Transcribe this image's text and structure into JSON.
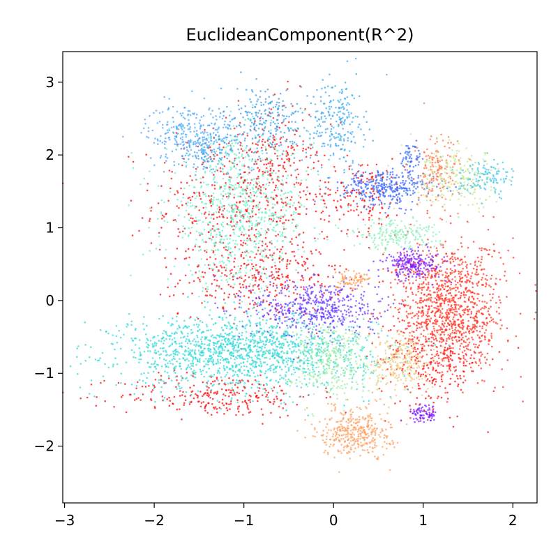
{
  "chart_data": {
    "type": "scatter",
    "title": "EuclideanComponent(R^2)",
    "xlabel": "",
    "ylabel": "",
    "xlim": [
      -3.02,
      2.27
    ],
    "ylim": [
      -2.78,
      3.42
    ],
    "xticks": [
      -3,
      -2,
      -1,
      0,
      1,
      2
    ],
    "yticks": [
      -2,
      -1,
      0,
      1,
      2,
      3
    ],
    "xtick_labels": [
      "−3",
      "−2",
      "−1",
      "0",
      "1",
      "2"
    ],
    "ytick_labels": [
      "−2",
      "−1",
      "0",
      "1",
      "2",
      "3"
    ],
    "grid": false,
    "legend": "none",
    "point_alpha": 0.7,
    "clusters": [
      {
        "color": "#ff0000",
        "center": [
          -1.0,
          1.35
        ],
        "spread": [
          0.5,
          0.55
        ],
        "n": 520
      },
      {
        "color": "#ff0000",
        "center": [
          -0.8,
          0.3
        ],
        "spread": [
          0.45,
          0.25
        ],
        "n": 300
      },
      {
        "color": "#ff0000",
        "center": [
          -1.3,
          -1.3
        ],
        "spread": [
          0.55,
          0.15
        ],
        "n": 260
      },
      {
        "color": "#ff0000",
        "center": [
          0.3,
          1.45
        ],
        "spread": [
          0.25,
          0.25
        ],
        "n": 150
      },
      {
        "color": "#ff0000",
        "center": [
          1.1,
          -0.8
        ],
        "spread": [
          0.3,
          0.35
        ],
        "n": 260
      },
      {
        "color": "#ff0000",
        "center": [
          -0.6,
          1.95
        ],
        "spread": [
          0.15,
          0.4
        ],
        "n": 100
      },
      {
        "color": "#4da6ff",
        "center": [
          -1.6,
          2.3
        ],
        "spread": [
          0.25,
          0.2
        ],
        "n": 280
      },
      {
        "color": "#3a9ee8",
        "center": [
          -0.75,
          2.45
        ],
        "spread": [
          0.25,
          0.25
        ],
        "n": 260
      },
      {
        "color": "#3aa8f0",
        "center": [
          0.05,
          2.45
        ],
        "spread": [
          0.15,
          0.3
        ],
        "n": 220
      },
      {
        "color": "#3a9ee8",
        "center": [
          -1.4,
          2.0
        ],
        "spread": [
          0.2,
          0.15
        ],
        "n": 100
      },
      {
        "color": "#66f0c8",
        "center": [
          -1.05,
          1.2
        ],
        "spread": [
          0.4,
          0.5
        ],
        "n": 750
      },
      {
        "color": "#30d9d9",
        "center": [
          -1.0,
          -0.7
        ],
        "spread": [
          0.7,
          0.25
        ],
        "n": 1500
      },
      {
        "color": "#6633ff",
        "center": [
          -0.2,
          -0.1
        ],
        "spread": [
          0.35,
          0.2
        ],
        "n": 500
      },
      {
        "color": "#9af0a0",
        "center": [
          -0.05,
          -0.8
        ],
        "spread": [
          0.25,
          0.25
        ],
        "n": 350
      },
      {
        "color": "#ff3320",
        "center": [
          1.3,
          -0.1
        ],
        "spread": [
          0.3,
          0.45
        ],
        "n": 1100
      },
      {
        "color": "#f0c878",
        "center": [
          0.75,
          -0.85
        ],
        "spread": [
          0.15,
          0.2
        ],
        "n": 250
      },
      {
        "color": "#ffa060",
        "center": [
          0.25,
          -1.8
        ],
        "spread": [
          0.2,
          0.17
        ],
        "n": 380
      },
      {
        "color": "#7a1aff",
        "center": [
          0.9,
          0.5
        ],
        "spread": [
          0.17,
          0.1
        ],
        "n": 220
      },
      {
        "color": "#7a1aff",
        "center": [
          1.0,
          -1.55
        ],
        "spread": [
          0.08,
          0.06
        ],
        "n": 80
      },
      {
        "color": "#3366ff",
        "center": [
          0.6,
          1.55
        ],
        "spread": [
          0.25,
          0.12
        ],
        "n": 320
      },
      {
        "color": "#3366ff",
        "center": [
          0.85,
          1.95
        ],
        "spread": [
          0.06,
          0.12
        ],
        "n": 60
      },
      {
        "color": "#8af0b8",
        "center": [
          0.7,
          0.9
        ],
        "spread": [
          0.25,
          0.1
        ],
        "n": 200
      },
      {
        "color": "#ff7040",
        "center": [
          1.15,
          1.75
        ],
        "spread": [
          0.12,
          0.25
        ],
        "n": 150
      },
      {
        "color": "#c8e890",
        "center": [
          1.4,
          1.65
        ],
        "spread": [
          0.25,
          0.2
        ],
        "n": 220
      },
      {
        "color": "#40c8e8",
        "center": [
          1.7,
          1.7
        ],
        "spread": [
          0.15,
          0.12
        ],
        "n": 120
      },
      {
        "color": "#ff9a50",
        "center": [
          0.2,
          0.3
        ],
        "spread": [
          0.12,
          0.06
        ],
        "n": 70
      }
    ]
  }
}
